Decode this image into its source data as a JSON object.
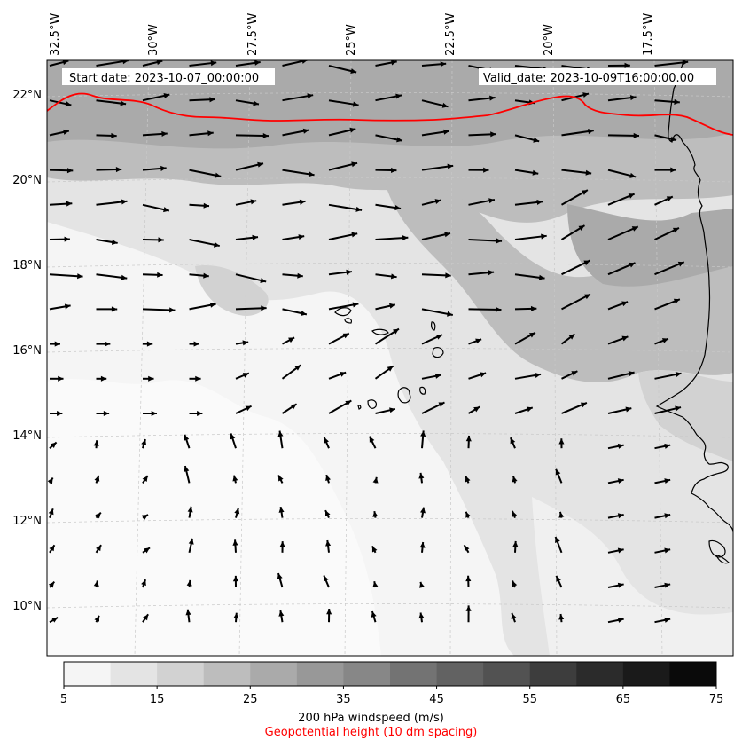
{
  "map": {
    "start_label": "Start date: 2023-10-07_00:00:00",
    "valid_label": "Valid_date: 2023-10-09T16:00:00.00",
    "lon_ticks": [
      "32.5°W",
      "30°W",
      "27.5°W",
      "25°W",
      "22.5°W",
      "20°W",
      "17.5°W"
    ],
    "lat_ticks": [
      "22°N",
      "20°N",
      "18°N",
      "16°N",
      "14°N",
      "12°N",
      "10°N"
    ],
    "geopotential_line_color": "#ff0000",
    "coastline_color": "#000000"
  },
  "colorbar": {
    "ticks": [
      "5",
      "15",
      "25",
      "35",
      "45",
      "55",
      "65",
      "75"
    ],
    "range": [
      5,
      75
    ],
    "step": 5,
    "shades": [
      "#f5f5f5",
      "#e4e4e4",
      "#d2d2d2",
      "#bdbdbd",
      "#aaaaaa",
      "#989898",
      "#878787",
      "#737373",
      "#626262",
      "#525252",
      "#3d3d3d",
      "#2b2b2b",
      "#1a1a1a",
      "#0a0a0a"
    ],
    "label": "200 hPa windspeed (m/s)",
    "sublabel": "Geopotential height (10 dm spacing)",
    "sublabel_color": "#ff0000"
  }
}
